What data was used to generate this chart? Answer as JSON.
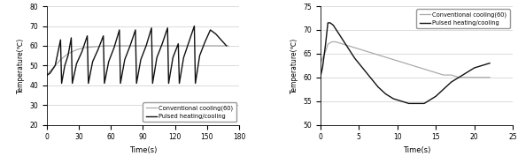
{
  "left": {
    "xlabel": "Time(s)",
    "ylabel": "Temperature(℃)",
    "xlim": [
      0,
      180
    ],
    "ylim": [
      20,
      80
    ],
    "xticks": [
      0,
      30,
      60,
      90,
      120,
      150,
      180
    ],
    "yticks": [
      20,
      30,
      40,
      50,
      60,
      70,
      80
    ],
    "conventional_color": "#aaaaaa",
    "pulsed_color": "#111111",
    "legend_labels": [
      "Conventional cooling(60)",
      "Pulsed heating/cooling"
    ],
    "conv_x": [
      0,
      3,
      8,
      13,
      20,
      28,
      35,
      45,
      55,
      65,
      80,
      100,
      120,
      150,
      170
    ],
    "conv_y": [
      45,
      47,
      50,
      53,
      56,
      58,
      59,
      59.5,
      60,
      60,
      60,
      60,
      60,
      60,
      60
    ],
    "pulsed_x": [
      0,
      3,
      8,
      13,
      14,
      17,
      20,
      23,
      24,
      28,
      33,
      38,
      39,
      43,
      48,
      53,
      54,
      58,
      63,
      68,
      69,
      73,
      78,
      83,
      84,
      88,
      93,
      98,
      99,
      103,
      108,
      113,
      114,
      118,
      123,
      124,
      128,
      133,
      138,
      139,
      143,
      148,
      153,
      158,
      163,
      168
    ],
    "pulsed_y": [
      45,
      46,
      50,
      63,
      41,
      50,
      55,
      64,
      41,
      51,
      57,
      65,
      41,
      52,
      58,
      65,
      41,
      52,
      59,
      68,
      41,
      53,
      60,
      68,
      41,
      53,
      60,
      69,
      41,
      54,
      61,
      69,
      41,
      54,
      61,
      41,
      54,
      62,
      70,
      41,
      55,
      62,
      68,
      66,
      63,
      60
    ]
  },
  "right": {
    "xlabel": "Time(s)",
    "ylabel": "Temperature(℃)",
    "xlim": [
      0,
      25
    ],
    "ylim": [
      50,
      75
    ],
    "xticks": [
      0,
      5,
      10,
      15,
      20,
      25
    ],
    "yticks": [
      50,
      55,
      60,
      65,
      70,
      75
    ],
    "conventional_color": "#aaaaaa",
    "pulsed_color": "#111111",
    "legend_labels": [
      "Conventional cooling(60)",
      "Pulsed heating/cooling"
    ],
    "conv_x": [
      0,
      0.3,
      0.7,
      1.0,
      1.5,
      2.0,
      3.0,
      4.0,
      5.0,
      6.0,
      7.0,
      8.0,
      9.0,
      10.0,
      11.0,
      12.0,
      13.0,
      14.0,
      15.0,
      16.0,
      17.0,
      18.0,
      19.0,
      20.0,
      21.0,
      22.0
    ],
    "conv_y": [
      63,
      64,
      65.5,
      67,
      67.5,
      67.5,
      67.0,
      66.5,
      66.0,
      65.5,
      65.0,
      64.5,
      64.0,
      63.5,
      63.0,
      62.5,
      62.0,
      61.5,
      61.0,
      60.5,
      60.5,
      60.0,
      60.0,
      60.0,
      60.0,
      60.0
    ],
    "pulsed_x": [
      0,
      0.3,
      0.7,
      1.0,
      1.3,
      1.7,
      2.5,
      3.5,
      4.5,
      5.5,
      6.5,
      7.5,
      8.5,
      9.5,
      10.5,
      11.5,
      12.0,
      12.5,
      13.0,
      13.5,
      14.0,
      15.0,
      16.0,
      17.0,
      18.0,
      19.0,
      20.0,
      21.0,
      22.0
    ],
    "pulsed_y": [
      60,
      62,
      67,
      71.5,
      71.5,
      71.0,
      69.0,
      66.5,
      64.0,
      62.0,
      60.0,
      58.0,
      56.5,
      55.5,
      55.0,
      54.5,
      54.5,
      54.5,
      54.5,
      54.5,
      55.0,
      56.0,
      57.5,
      59.0,
      60.0,
      61.0,
      62.0,
      62.5,
      63.0
    ]
  }
}
